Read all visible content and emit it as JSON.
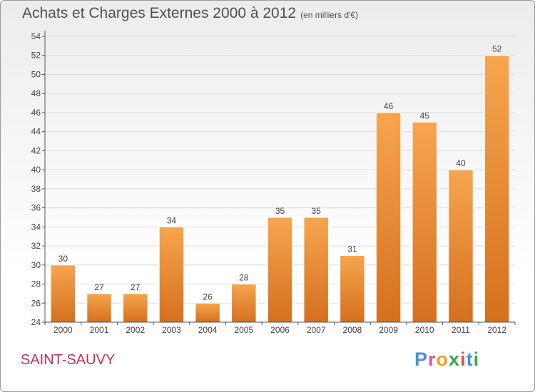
{
  "header": {
    "title": "Achats et Charges Externes 2000 à 2012",
    "subtitle": "(en milliers d'€)"
  },
  "footer": {
    "city": "SAINT-SAUVY",
    "logo": [
      "P",
      "r",
      "o",
      "x",
      "i",
      "t",
      "i"
    ]
  },
  "colors": {
    "bar_top": "#f7a54e",
    "bar_bottom": "#d4701e",
    "city": "#c0305a",
    "logo": [
      "#4a90d9",
      "#e94f8a",
      "#f0a020",
      "#3aa84a",
      "#e94f3a",
      "#4a90d9",
      "#3aa84a"
    ]
  },
  "chart_data": {
    "type": "bar",
    "title": "Achats et Charges Externes 2000 à 2012",
    "subtitle": "(en milliers d'€)",
    "categories": [
      "2000",
      "2001",
      "2002",
      "2003",
      "2004",
      "2005",
      "2006",
      "2007",
      "2008",
      "2009",
      "2010",
      "2011",
      "2012"
    ],
    "values": [
      30,
      27,
      27,
      34,
      26,
      28,
      35,
      35,
      31,
      46,
      45,
      40,
      52
    ],
    "yticks": [
      24,
      26,
      28,
      30,
      32,
      34,
      36,
      38,
      40,
      42,
      44,
      46,
      48,
      50,
      52,
      54
    ],
    "ylim": [
      24,
      54
    ],
    "grid": true,
    "xlabel": "",
    "ylabel": ""
  }
}
